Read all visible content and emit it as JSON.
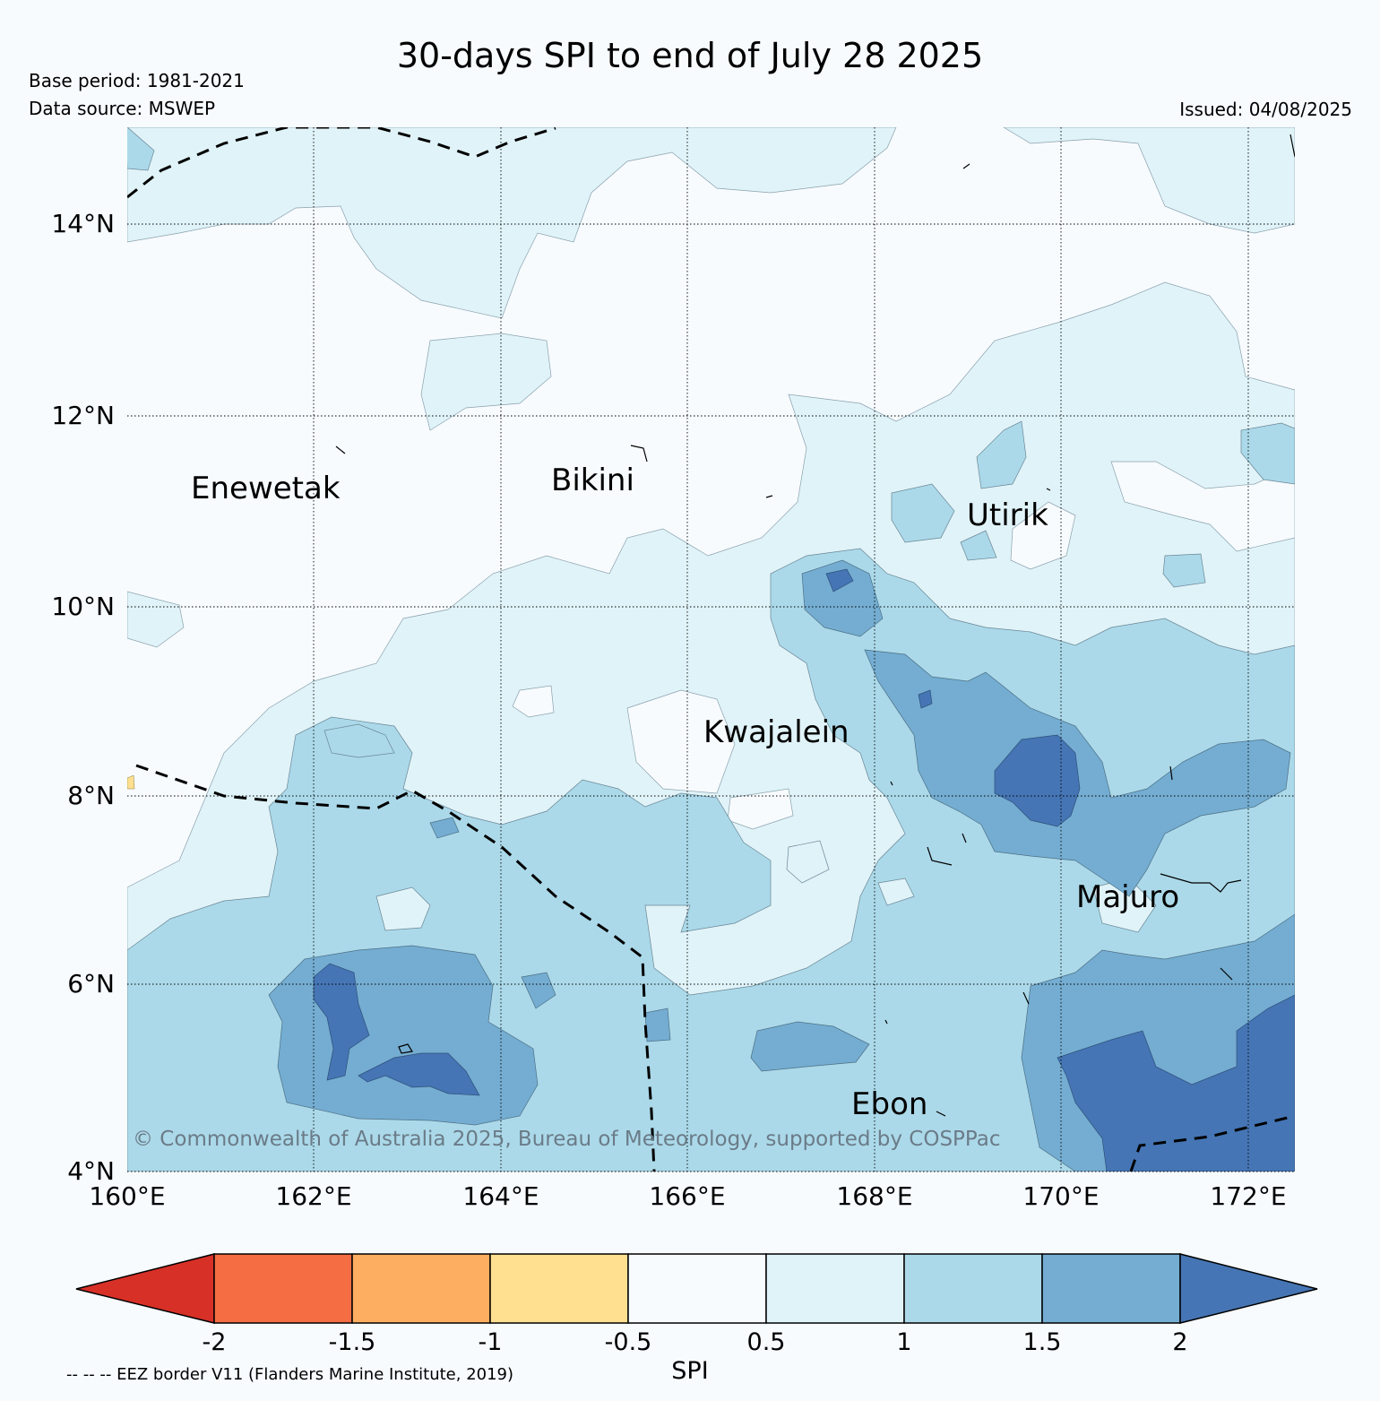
{
  "header": {
    "title": "30-days SPI to end of July 28 2025",
    "base_period": "Base period: 1981-2021",
    "data_source": "Data source: MSWEP",
    "issued": "Issued: 04/08/2025"
  },
  "map": {
    "lon_ticks": [
      "160°E",
      "162°E",
      "164°E",
      "166°E",
      "168°E",
      "170°E",
      "172°E"
    ],
    "lat_ticks": [
      "14°N",
      "12°N",
      "10°N",
      "8°N",
      "6°N",
      "4°N"
    ],
    "lon_range": [
      160,
      172.5
    ],
    "lat_range": [
      4,
      15
    ],
    "places": [
      {
        "name": "Enewetak",
        "lon": 162.3,
        "lat": 11.1
      },
      {
        "name": "Bikini",
        "lon": 165.0,
        "lat": 11.3
      },
      {
        "name": "Utirik",
        "lon": 169.6,
        "lat": 10.9
      },
      {
        "name": "Kwajalein",
        "lon": 167.0,
        "lat": 8.7
      },
      {
        "name": "Majuro",
        "lon": 171.2,
        "lat": 6.9
      },
      {
        "name": "Ebon",
        "lon": 168.5,
        "lat": 4.7
      }
    ],
    "copyright": "© Commonwealth of Australia 2025, Bureau of Meteorology, supported by COSPPac",
    "border_style": "dashed"
  },
  "colorbar": {
    "label": "SPI",
    "ticks": [
      "-2",
      "-1.5",
      "-1",
      "-0.5",
      "0.5",
      "1",
      "1.5",
      "2"
    ],
    "colors": [
      "#d73027",
      "#f46d43",
      "#fdae61",
      "#fee090",
      "#f7fbfe",
      "#e0f3f8",
      "#abd9e9",
      "#74add1",
      "#4575b4"
    ]
  },
  "footer": {
    "eez_note": "-- -- -- EEZ border V11 (Flanders Marine Institute, 2019)"
  }
}
